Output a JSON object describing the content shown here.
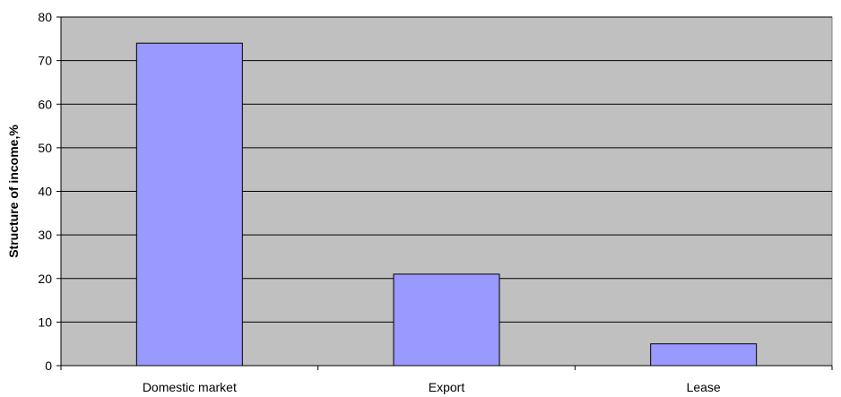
{
  "chart_data": {
    "type": "bar",
    "title": "",
    "xlabel": "",
    "ylabel": "Structure of income,%",
    "categories": [
      "Domestic market",
      "Export",
      "Lease"
    ],
    "series": [
      {
        "values": [
          74,
          21,
          5
        ]
      }
    ],
    "ylim": [
      0,
      80
    ],
    "yticks": [
      0,
      10,
      20,
      30,
      40,
      50,
      60,
      70,
      80
    ],
    "grid": true,
    "legend": "none",
    "colors": {
      "plot_background": "#c0c0c0",
      "bar_fill": "#9999ff",
      "bar_stroke": "#000000",
      "gridline": "#000000"
    }
  }
}
